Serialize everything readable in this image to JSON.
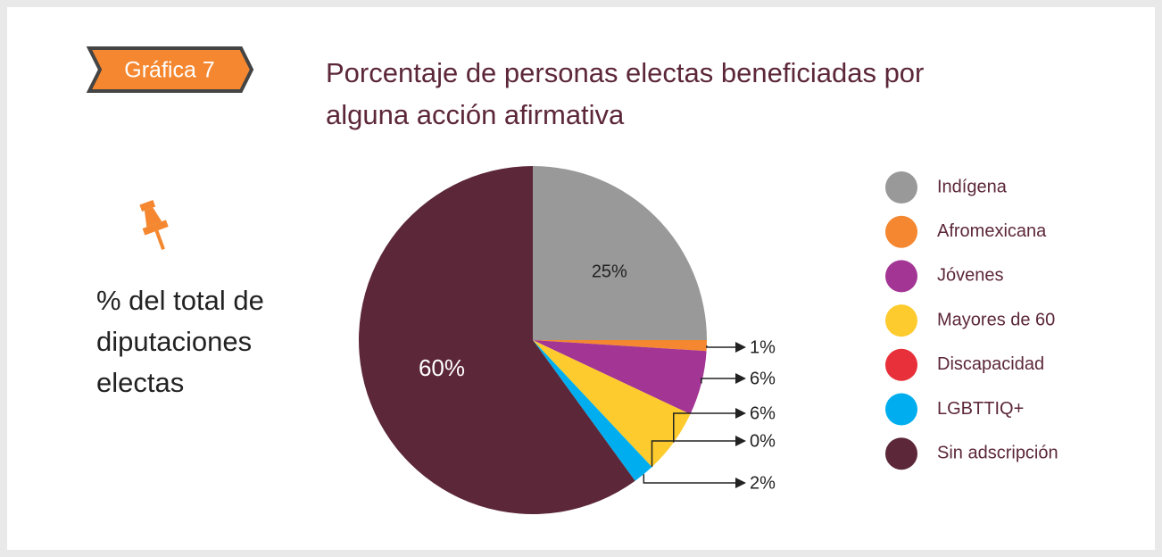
{
  "badge": "Gráfica 7",
  "note": "% del total de diputaciones electas",
  "chart_data": {
    "type": "pie",
    "title": "Porcentaje de personas electas beneficiadas por alguna acción afirmativa",
    "categories": [
      "Indígena",
      "Afromexicana",
      "Jóvenes",
      "Mayores de 60",
      "Discapacidad",
      "LGBTTIQ+",
      "Sin adscripción"
    ],
    "values": [
      25,
      1,
      6,
      6,
      0,
      2,
      60
    ],
    "value_labels": [
      "25%",
      "1%",
      "6%",
      "6%",
      "0%",
      "2%",
      "60%"
    ],
    "colors": [
      "#999999",
      "#f4872f",
      "#a33594",
      "#fdcb2d",
      "#e8303a",
      "#00aeef",
      "#5c2738"
    ]
  }
}
